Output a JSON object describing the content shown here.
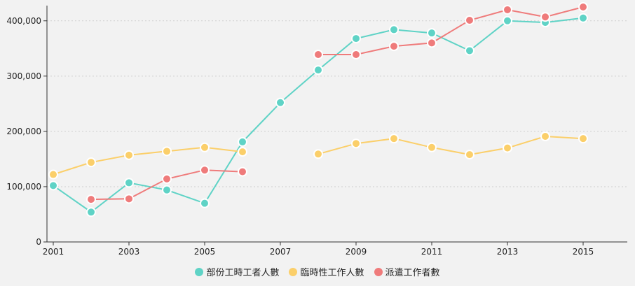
{
  "chart_data": {
    "type": "line",
    "x": [
      2001,
      2002,
      2003,
      2004,
      2005,
      2006,
      2007,
      2008,
      2009,
      2010,
      2011,
      2012,
      2013,
      2014,
      2015
    ],
    "x_tick_labels": [
      "2001",
      "2003",
      "2005",
      "2007",
      "2009",
      "2011",
      "2013",
      "2015"
    ],
    "x_tick_values": [
      2001,
      2003,
      2005,
      2007,
      2009,
      2011,
      2013,
      2015
    ],
    "y_tick_labels": [
      "0",
      "100,000",
      "200,000",
      "300,000",
      "400,000"
    ],
    "y_tick_values": [
      0,
      100000,
      200000,
      300000,
      400000
    ],
    "xlim": [
      2001,
      2016.2
    ],
    "ylim": [
      0,
      425000
    ],
    "grid": "horizontal dotted",
    "legend_position": "bottom",
    "series": [
      {
        "name": "部份工時工者人數",
        "color": "#5fd3c6",
        "values": [
          102000,
          54000,
          107000,
          94000,
          70000,
          181000,
          252000,
          311000,
          368000,
          384000,
          378000,
          346000,
          400000,
          397000,
          405000
        ]
      },
      {
        "name": "臨時性工作人數",
        "color": "#fbcf6a",
        "values": [
          122000,
          144000,
          157000,
          164000,
          171000,
          163000,
          null,
          159000,
          178000,
          187000,
          171000,
          158000,
          170000,
          191000,
          187000
        ]
      },
      {
        "name": "派遣工作者數",
        "color": "#ef7b7b",
        "values": [
          null,
          77000,
          78000,
          114000,
          130000,
          127000,
          null,
          339000,
          339000,
          354000,
          360000,
          401000,
          420000,
          407000,
          425000
        ]
      }
    ]
  }
}
